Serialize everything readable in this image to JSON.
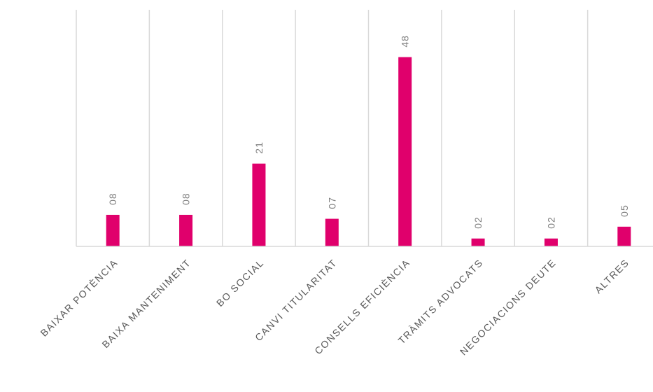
{
  "chart_data": {
    "type": "bar",
    "categories": [
      "BAIXAR POTÈNCIA",
      "BAIXA MANTENIMENT",
      "BO SOCIAL",
      "CANVI TITULARITAT",
      "CONSELLS EFICIÈNCIA",
      "TRÀMITS ADVOCATS",
      "NEGOCIACIONS DEUTE",
      "ALTRES"
    ],
    "values": [
      8,
      8,
      21,
      7,
      48,
      2,
      2,
      5
    ],
    "value_labels": [
      "08",
      "08",
      "21",
      "07",
      "48",
      "02",
      "02",
      "05"
    ],
    "ylim": [
      0,
      60
    ],
    "grid": "vertical",
    "bar_color": "#E0006C",
    "grid_color": "#D9D9D9"
  }
}
